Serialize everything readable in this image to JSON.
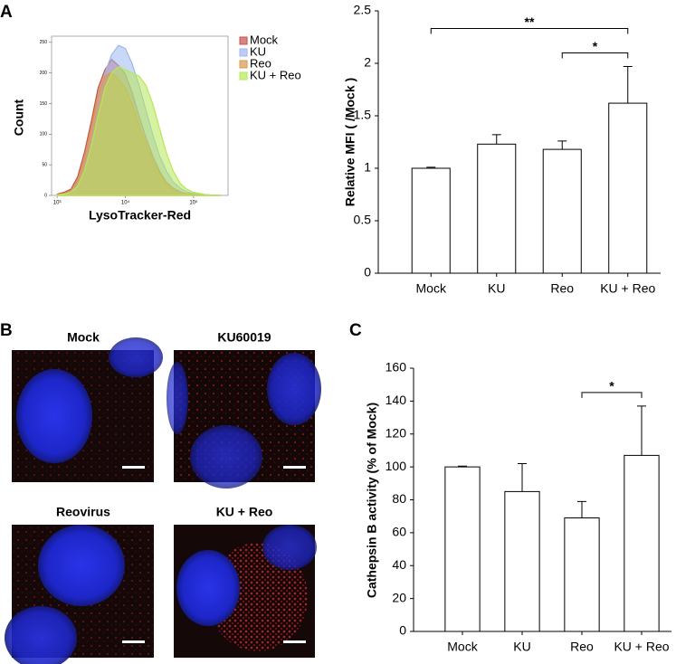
{
  "panel_labels": [
    "A",
    "B",
    "C"
  ],
  "micrographs": [
    {
      "label": "Mock"
    },
    {
      "label": "KU60019"
    },
    {
      "label": "Reovirus"
    },
    {
      "label": "KU + Reo"
    }
  ],
  "chart_data": [
    {
      "type": "area",
      "xlabel": "LysoTracker-Red",
      "ylabel": "Count",
      "xscale": "log",
      "x": [
        1000,
        1259,
        1585,
        1995,
        2512,
        3162,
        3981,
        5012,
        6310,
        7943,
        10000,
        12589,
        15849,
        19953,
        25119,
        31623,
        39811,
        50119,
        63096,
        79433,
        100000,
        125893,
        158489,
        199526,
        251189
      ],
      "series": [
        {
          "name": "Mock",
          "color": "#c8504a",
          "values": [
            2,
            5,
            10,
            30,
            70,
            120,
            175,
            205,
            222,
            212,
            198,
            168,
            130,
            95,
            65,
            40,
            22,
            12,
            6,
            3,
            2,
            1,
            1,
            0,
            0
          ]
        },
        {
          "name": "KU",
          "color": "#9db8ee",
          "values": [
            1,
            3,
            6,
            18,
            45,
            90,
            150,
            200,
            230,
            245,
            240,
            215,
            180,
            140,
            100,
            65,
            40,
            22,
            12,
            6,
            3,
            2,
            1,
            0,
            0
          ]
        },
        {
          "name": "Reo",
          "color": "#d8994c",
          "values": [
            1,
            3,
            8,
            25,
            60,
            110,
            165,
            195,
            200,
            190,
            175,
            150,
            115,
            85,
            58,
            36,
            20,
            10,
            5,
            3,
            1,
            1,
            0,
            0,
            0
          ]
        },
        {
          "name": "KU + Reo",
          "color": "#b6e857",
          "values": [
            1,
            2,
            5,
            15,
            40,
            80,
            130,
            175,
            200,
            210,
            205,
            200,
            195,
            180,
            150,
            110,
            70,
            40,
            20,
            10,
            5,
            3,
            1,
            0,
            0
          ]
        }
      ],
      "xlim": [
        830,
        320000
      ],
      "xticks": [
        {
          "value": 1000,
          "label": "10³"
        },
        {
          "value": 10000,
          "label": "10⁴"
        },
        {
          "value": 100000,
          "label": "10⁵"
        }
      ],
      "ylim": [
        0,
        260
      ],
      "yticks": [
        0,
        50,
        100,
        150,
        200,
        250
      ],
      "legend": "right"
    },
    {
      "type": "bar",
      "ylabel": "Relative MFI ( /Mock )",
      "categories": [
        "Mock",
        "KU",
        "Reo",
        "KU + Reo"
      ],
      "values": [
        1,
        1.23,
        1.18,
        1.62
      ],
      "errors": [
        0.01,
        0.09,
        0.08,
        0.35
      ],
      "color": "#ffffff",
      "ylim": [
        0,
        2.5
      ],
      "yticks": [
        0,
        0.5,
        1,
        1.5,
        2,
        2.5
      ],
      "significance": [
        {
          "from": 2,
          "to": 3,
          "label": "*"
        },
        {
          "from": 0,
          "to": 3,
          "label": "**"
        }
      ]
    },
    {
      "type": "bar",
      "ylabel": "Cathepsin B activity (% of Mock)",
      "categories": [
        "Mock",
        "KU",
        "Reo",
        "KU + Reo"
      ],
      "values": [
        100,
        85,
        69,
        107
      ],
      "errors": [
        0.5,
        17,
        10,
        30
      ],
      "color": "#ffffff",
      "ylim": [
        0,
        160
      ],
      "yticks": [
        0,
        20,
        40,
        60,
        80,
        100,
        120,
        140,
        160
      ],
      "significance": [
        {
          "from": 2,
          "to": 3,
          "label": "*"
        }
      ]
    }
  ]
}
